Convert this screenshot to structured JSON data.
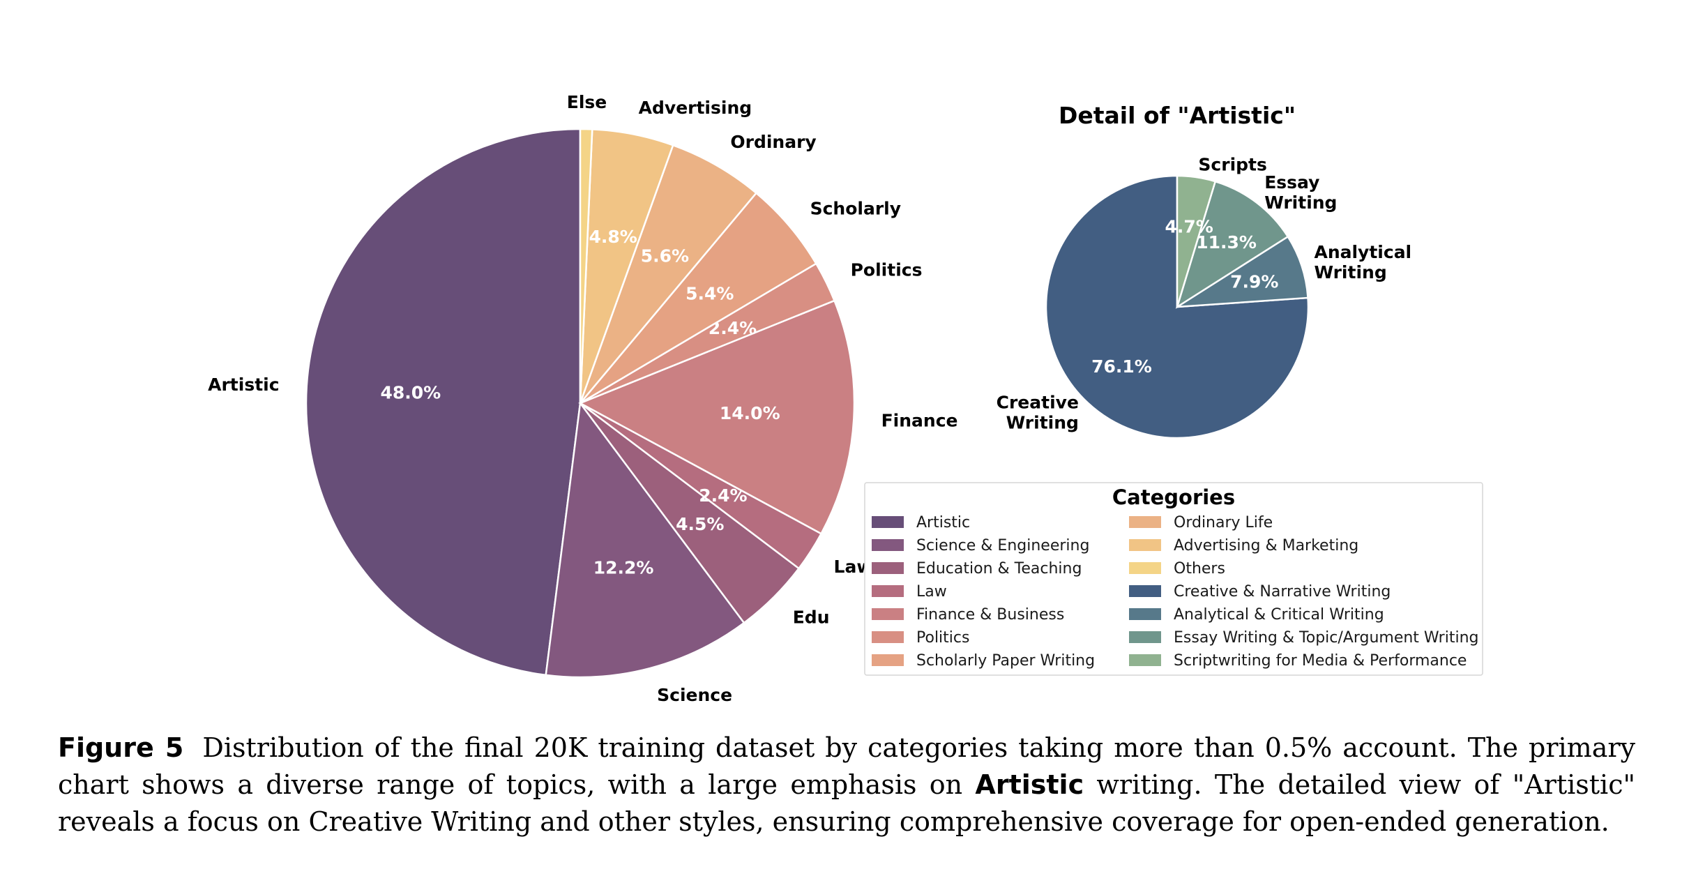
{
  "chart_data": [
    {
      "type": "pie",
      "title": "",
      "slices": [
        {
          "label": "Artistic",
          "value": 48.0,
          "pct_text": "48.0%",
          "color": "#674e78"
        },
        {
          "label": "Science",
          "value": 12.2,
          "pct_text": "12.2%",
          "color": "#83587f"
        },
        {
          "label": "Edu",
          "value": 4.5,
          "pct_text": "4.5%",
          "color": "#9c607c"
        },
        {
          "label": "Law",
          "value": 2.4,
          "pct_text": "2.4%",
          "color": "#b56d7f"
        },
        {
          "label": "Finance",
          "value": 14.0,
          "pct_text": "14.0%",
          "color": "#ca8083"
        },
        {
          "label": "Politics",
          "value": 2.4,
          "pct_text": "2.4%",
          "color": "#d88f83"
        },
        {
          "label": "Scholarly",
          "value": 5.4,
          "pct_text": "5.4%",
          "color": "#e5a283"
        },
        {
          "label": "Ordinary",
          "value": 5.6,
          "pct_text": "5.6%",
          "color": "#ebb285"
        },
        {
          "label": "Advertising",
          "value": 4.8,
          "pct_text": "4.8%",
          "color": "#f1c485"
        },
        {
          "label": "Else",
          "value": 0.7,
          "pct_text": "",
          "color": "#f4d487"
        }
      ]
    },
    {
      "type": "pie",
      "title": "Detail of \"Artistic\"",
      "slices": [
        {
          "label": "Creative\nWriting",
          "value": 76.1,
          "pct_text": "76.1%",
          "color": "#425e82"
        },
        {
          "label": "Analytical\nWriting",
          "value": 7.9,
          "pct_text": "7.9%",
          "color": "#57798a"
        },
        {
          "label": "Essay\nWriting",
          "value": 11.3,
          "pct_text": "11.3%",
          "color": "#70968c"
        },
        {
          "label": "Scripts",
          "value": 4.7,
          "pct_text": "4.7%",
          "color": "#90b290"
        }
      ]
    }
  ],
  "legend": {
    "title": "Categories",
    "items": [
      {
        "label": "Artistic",
        "color": "#674e78"
      },
      {
        "label": "Science & Engineering",
        "color": "#83587f"
      },
      {
        "label": "Education & Teaching",
        "color": "#9c607c"
      },
      {
        "label": "Law",
        "color": "#b56d7f"
      },
      {
        "label": "Finance & Business",
        "color": "#ca8083"
      },
      {
        "label": "Politics",
        "color": "#d88f83"
      },
      {
        "label": "Scholarly Paper Writing",
        "color": "#e5a283"
      },
      {
        "label": "Ordinary Life",
        "color": "#ebb285"
      },
      {
        "label": "Advertising & Marketing",
        "color": "#f1c485"
      },
      {
        "label": "Others",
        "color": "#f4d487"
      },
      {
        "label": "Creative & Narrative Writing",
        "color": "#425e82"
      },
      {
        "label": "Analytical & Critical Writing",
        "color": "#57798a"
      },
      {
        "label": "Essay Writing & Topic/Argument Writing",
        "color": "#70968c"
      },
      {
        "label": "Scriptwriting for Media & Performance",
        "color": "#90b290"
      }
    ]
  },
  "caption": {
    "label": "Figure 5",
    "text_1": "Distribution of the final 20K training dataset by categories taking more than 0.5% account. The primary chart shows a diverse range of topics, with a large emphasis on",
    "emphasis": "Artistic",
    "text_2": "writing. The detailed view of \"Artistic\" reveals a focus on Creative Writing and other styles, ensuring comprehensive coverage for open-ended generation."
  }
}
